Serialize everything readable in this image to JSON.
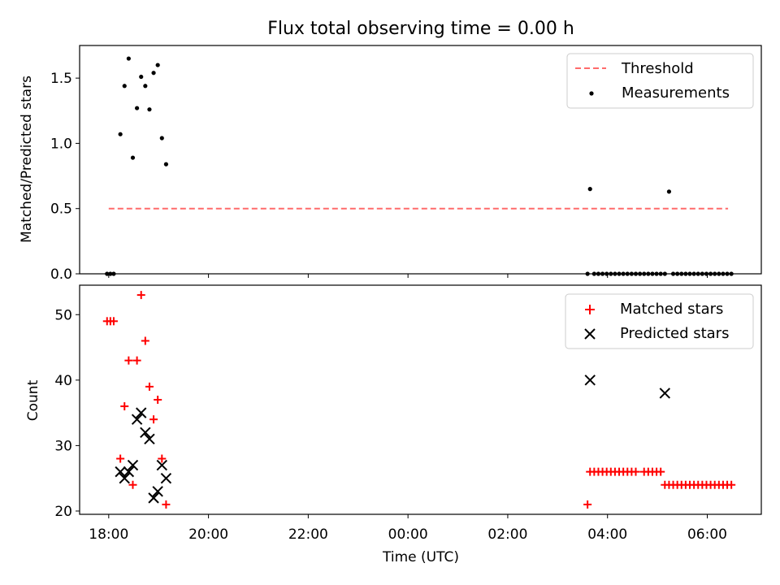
{
  "figure": {
    "title": "Flux total observing time = 0.00 h",
    "xlabel": "Time (UTC)",
    "x_ticks": [
      "18:00",
      "20:00",
      "22:00",
      "00:00",
      "02:00",
      "04:00",
      "06:00"
    ]
  },
  "colors": {
    "threshold": "#ff6b6b",
    "measurements": "#000000",
    "matched": "#ff0000",
    "predicted": "#000000"
  },
  "chart_data": [
    {
      "type": "scatter",
      "ylabel": "Matched/Predicted stars",
      "xlim": [
        "17:25",
        "07:05"
      ],
      "ylim": [
        0,
        1.75
      ],
      "y_ticks": [
        "0.0",
        "0.5",
        "1.0",
        "1.5"
      ],
      "y_tick_values": [
        0,
        0.5,
        1.0,
        1.5
      ],
      "legend_position": "top-right",
      "legend": [
        "Threshold",
        "Measurements"
      ],
      "series": [
        {
          "name": "Threshold",
          "style": "dashed-line",
          "x": [
            "18:00",
            "06:25"
          ],
          "y": [
            0.5,
            0.5
          ]
        },
        {
          "name": "Measurements",
          "style": "dot",
          "x": [
            "17:58",
            "18:02",
            "18:06",
            "18:14",
            "18:19",
            "18:24",
            "18:29",
            "18:34",
            "18:39",
            "18:44",
            "18:49",
            "18:54",
            "18:59",
            "19:04",
            "19:09",
            "03:36",
            "03:39",
            "03:44",
            "03:49",
            "03:54",
            "03:59",
            "04:04",
            "04:09",
            "04:14",
            "04:19",
            "04:24",
            "04:29",
            "04:34",
            "04:39",
            "04:44",
            "04:49",
            "04:54",
            "04:59",
            "05:04",
            "05:09",
            "05:14",
            "05:19",
            "05:24",
            "05:29",
            "05:34",
            "05:39",
            "05:44",
            "05:49",
            "05:54",
            "05:59",
            "06:04",
            "06:09",
            "06:14",
            "06:19",
            "06:24",
            "06:29"
          ],
          "y": [
            0,
            0,
            0,
            1.07,
            1.44,
            1.65,
            0.89,
            1.27,
            1.51,
            1.44,
            1.26,
            1.54,
            1.6,
            1.04,
            0.84,
            0,
            0.65,
            0,
            0,
            0,
            0,
            0,
            0,
            0,
            0,
            0,
            0,
            0,
            0,
            0,
            0,
            0,
            0,
            0,
            0,
            0.63,
            0,
            0,
            0,
            0,
            0,
            0,
            0,
            0,
            0,
            0,
            0,
            0,
            0,
            0,
            0
          ]
        }
      ]
    },
    {
      "type": "scatter",
      "ylabel": "Count",
      "xlim": [
        "17:25",
        "07:05"
      ],
      "ylim": [
        19.5,
        54.5
      ],
      "y_ticks": [
        "20",
        "30",
        "40",
        "50"
      ],
      "y_tick_values": [
        20,
        30,
        40,
        50
      ],
      "legend_position": "top-right",
      "legend": [
        "Matched stars",
        "Predicted stars"
      ],
      "series": [
        {
          "name": "Matched stars",
          "style": "plus",
          "x": [
            "17:58",
            "18:02",
            "18:06",
            "18:14",
            "18:19",
            "18:24",
            "18:29",
            "18:34",
            "18:39",
            "18:44",
            "18:49",
            "18:54",
            "18:59",
            "19:04",
            "19:09",
            "03:36",
            "03:39",
            "03:44",
            "03:49",
            "03:54",
            "03:59",
            "04:04",
            "04:09",
            "04:14",
            "04:19",
            "04:24",
            "04:29",
            "04:34",
            "04:44",
            "04:49",
            "04:54",
            "04:59",
            "05:04",
            "05:09",
            "05:14",
            "05:19",
            "05:24",
            "05:29",
            "05:34",
            "05:39",
            "05:44",
            "05:49",
            "05:54",
            "05:59",
            "06:04",
            "06:09",
            "06:14",
            "06:19",
            "06:24",
            "06:29"
          ],
          "y": [
            49,
            49,
            49,
            28,
            36,
            43,
            24,
            43,
            53,
            46,
            39,
            34,
            37,
            28,
            21,
            21,
            26,
            26,
            26,
            26,
            26,
            26,
            26,
            26,
            26,
            26,
            26,
            26,
            26,
            26,
            26,
            26,
            26,
            24,
            24,
            24,
            24,
            24,
            24,
            24,
            24,
            24,
            24,
            24,
            24,
            24,
            24,
            24,
            24,
            24
          ]
        },
        {
          "name": "Predicted stars",
          "style": "x",
          "x": [
            "18:14",
            "18:19",
            "18:24",
            "18:29",
            "18:34",
            "18:39",
            "18:44",
            "18:49",
            "18:54",
            "18:59",
            "19:04",
            "19:09",
            "03:39",
            "05:09"
          ],
          "y": [
            26,
            25,
            26,
            27,
            34,
            35,
            32,
            31,
            22,
            23,
            27,
            25,
            40,
            38
          ]
        }
      ]
    }
  ]
}
